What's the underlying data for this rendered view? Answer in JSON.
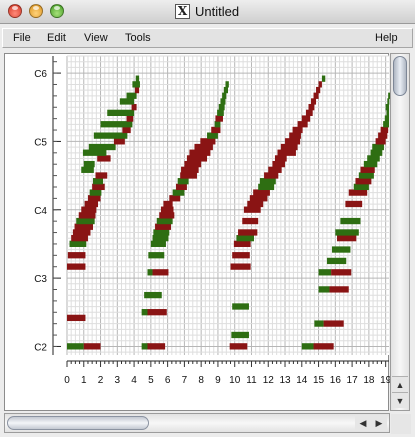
{
  "window": {
    "title": "Untitled",
    "app_icon": "X"
  },
  "menu": {
    "file": "File",
    "edit": "Edit",
    "view": "View",
    "tools": "Tools",
    "help": "Help"
  },
  "piano_roll": {
    "octave_labels": [
      "C6",
      "C5",
      "C4",
      "C3",
      "C2"
    ],
    "beat_labels": [
      "0",
      "1",
      "2",
      "3",
      "4",
      "5",
      "6",
      "7",
      "8",
      "9",
      "10",
      "11",
      "12",
      "13",
      "14",
      "15",
      "16",
      "17",
      "18",
      "19"
    ],
    "colors": {
      "green": "#2e6e12",
      "red": "#8a1414",
      "grid_minor": "#dedede",
      "grid_major": "#b6b6b6"
    },
    "beats_visible": [
      0,
      19.2
    ],
    "pitch_visible": [
      34.5,
      87
    ],
    "notes": [
      {
        "p": 36,
        "s": 0.0,
        "d": 1.0,
        "c": "green"
      },
      {
        "p": 36,
        "s": 1.0,
        "d": 1.0,
        "c": "red"
      },
      {
        "p": 41,
        "s": 0.0,
        "d": 1.1,
        "c": "red"
      },
      {
        "p": 50,
        "s": 0.0,
        "d": 1.1,
        "c": "red"
      },
      {
        "p": 52,
        "s": 0.05,
        "d": 1.05,
        "c": "red"
      },
      {
        "p": 54,
        "s": 0.15,
        "d": 1.0,
        "c": "green"
      },
      {
        "p": 55,
        "s": 0.25,
        "d": 1.0,
        "c": "red"
      },
      {
        "p": 56,
        "s": 0.35,
        "d": 1.05,
        "c": "red"
      },
      {
        "p": 57,
        "s": 0.45,
        "d": 1.1,
        "c": "red"
      },
      {
        "p": 58,
        "s": 0.55,
        "d": 1.1,
        "c": "green"
      },
      {
        "p": 59,
        "s": 0.7,
        "d": 1.0,
        "c": "red"
      },
      {
        "p": 60,
        "s": 0.85,
        "d": 0.9,
        "c": "red"
      },
      {
        "p": 61,
        "s": 1.05,
        "d": 0.8,
        "c": "red"
      },
      {
        "p": 62,
        "s": 1.25,
        "d": 0.75,
        "c": "red"
      },
      {
        "p": 63,
        "s": 1.35,
        "d": 0.7,
        "c": "green"
      },
      {
        "p": 64,
        "s": 1.5,
        "d": 0.75,
        "c": "red"
      },
      {
        "p": 65,
        "s": 1.55,
        "d": 0.6,
        "c": "green"
      },
      {
        "p": 66,
        "s": 1.7,
        "d": 0.7,
        "c": "red"
      },
      {
        "p": 67,
        "s": 0.85,
        "d": 0.75,
        "c": "green"
      },
      {
        "p": 68,
        "s": 1.0,
        "d": 0.65,
        "c": "green"
      },
      {
        "p": 69,
        "s": 1.8,
        "d": 0.8,
        "c": "red"
      },
      {
        "p": 70,
        "s": 0.95,
        "d": 1.4,
        "c": "green"
      },
      {
        "p": 71,
        "s": 1.3,
        "d": 1.6,
        "c": "green"
      },
      {
        "p": 72,
        "s": 2.8,
        "d": 0.65,
        "c": "red"
      },
      {
        "p": 73,
        "s": 1.6,
        "d": 2.0,
        "c": "green"
      },
      {
        "p": 74,
        "s": 3.3,
        "d": 0.5,
        "c": "red"
      },
      {
        "p": 75,
        "s": 2.0,
        "d": 1.9,
        "c": "green"
      },
      {
        "p": 76,
        "s": 3.55,
        "d": 0.4,
        "c": "red"
      },
      {
        "p": 77,
        "s": 2.4,
        "d": 1.6,
        "c": "green"
      },
      {
        "p": 78,
        "s": 3.85,
        "d": 0.3,
        "c": "red"
      },
      {
        "p": 79,
        "s": 3.15,
        "d": 0.85,
        "c": "green"
      },
      {
        "p": 80,
        "s": 3.55,
        "d": 0.6,
        "c": "green"
      },
      {
        "p": 81,
        "s": 4.05,
        "d": 0.25,
        "c": "red"
      },
      {
        "p": 82,
        "s": 3.9,
        "d": 0.45,
        "c": "green"
      },
      {
        "p": 83,
        "s": 4.1,
        "d": 0.2,
        "c": "green"
      },
      {
        "p": 36,
        "s": 4.45,
        "d": 0.4,
        "c": "green"
      },
      {
        "p": 36,
        "s": 4.8,
        "d": 1.05,
        "c": "red"
      },
      {
        "p": 42,
        "s": 4.45,
        "d": 0.4,
        "c": "green"
      },
      {
        "p": 42,
        "s": 4.8,
        "d": 1.15,
        "c": "red"
      },
      {
        "p": 45,
        "s": 4.6,
        "d": 1.05,
        "c": "green"
      },
      {
        "p": 49,
        "s": 4.8,
        "d": 0.3,
        "c": "green"
      },
      {
        "p": 49,
        "s": 5.1,
        "d": 0.95,
        "c": "red"
      },
      {
        "p": 52,
        "s": 4.85,
        "d": 0.95,
        "c": "green"
      },
      {
        "p": 54,
        "s": 5.0,
        "d": 0.9,
        "c": "green"
      },
      {
        "p": 55,
        "s": 5.1,
        "d": 0.95,
        "c": "green"
      },
      {
        "p": 56,
        "s": 5.15,
        "d": 0.95,
        "c": "green"
      },
      {
        "p": 57,
        "s": 5.25,
        "d": 0.95,
        "c": "red"
      },
      {
        "p": 58,
        "s": 5.35,
        "d": 0.95,
        "c": "green"
      },
      {
        "p": 59,
        "s": 5.5,
        "d": 0.9,
        "c": "red"
      },
      {
        "p": 60,
        "s": 5.6,
        "d": 0.75,
        "c": "red"
      },
      {
        "p": 61,
        "s": 5.75,
        "d": 0.55,
        "c": "red"
      },
      {
        "p": 62,
        "s": 6.1,
        "d": 0.65,
        "c": "red"
      },
      {
        "p": 63,
        "s": 6.3,
        "d": 0.7,
        "c": "green"
      },
      {
        "p": 64,
        "s": 6.5,
        "d": 0.65,
        "c": "red"
      },
      {
        "p": 65,
        "s": 6.6,
        "d": 0.65,
        "c": "green"
      },
      {
        "p": 66,
        "s": 6.75,
        "d": 1.0,
        "c": "red"
      },
      {
        "p": 67,
        "s": 6.8,
        "d": 1.05,
        "c": "red"
      },
      {
        "p": 68,
        "s": 7.0,
        "d": 1.0,
        "c": "red"
      },
      {
        "p": 69,
        "s": 7.15,
        "d": 1.2,
        "c": "red"
      },
      {
        "p": 70,
        "s": 7.3,
        "d": 1.25,
        "c": "red"
      },
      {
        "p": 71,
        "s": 7.6,
        "d": 1.1,
        "c": "red"
      },
      {
        "p": 72,
        "s": 7.95,
        "d": 0.9,
        "c": "red"
      },
      {
        "p": 73,
        "s": 8.35,
        "d": 0.65,
        "c": "green"
      },
      {
        "p": 74,
        "s": 8.6,
        "d": 0.55,
        "c": "red"
      },
      {
        "p": 75,
        "s": 8.8,
        "d": 0.35,
        "c": "green"
      },
      {
        "p": 76,
        "s": 8.85,
        "d": 0.45,
        "c": "red"
      },
      {
        "p": 77,
        "s": 8.95,
        "d": 0.4,
        "c": "green"
      },
      {
        "p": 78,
        "s": 9.05,
        "d": 0.35,
        "c": "green"
      },
      {
        "p": 79,
        "s": 9.15,
        "d": 0.3,
        "c": "green"
      },
      {
        "p": 80,
        "s": 9.25,
        "d": 0.25,
        "c": "green"
      },
      {
        "p": 81,
        "s": 9.35,
        "d": 0.25,
        "c": "green"
      },
      {
        "p": 82,
        "s": 9.45,
        "d": 0.2,
        "c": "green"
      },
      {
        "p": 36,
        "s": 9.7,
        "d": 1.05,
        "c": "red"
      },
      {
        "p": 38,
        "s": 9.8,
        "d": 1.05,
        "c": "green"
      },
      {
        "p": 43,
        "s": 9.85,
        "d": 1.0,
        "c": "green"
      },
      {
        "p": 50,
        "s": 9.75,
        "d": 1.2,
        "c": "red"
      },
      {
        "p": 52,
        "s": 9.85,
        "d": 1.05,
        "c": "red"
      },
      {
        "p": 54,
        "s": 9.95,
        "d": 1.0,
        "c": "red"
      },
      {
        "p": 55,
        "s": 10.1,
        "d": 1.05,
        "c": "green"
      },
      {
        "p": 56,
        "s": 10.2,
        "d": 1.15,
        "c": "red"
      },
      {
        "p": 58,
        "s": 10.45,
        "d": 0.95,
        "c": "red"
      },
      {
        "p": 60,
        "s": 10.55,
        "d": 1.0,
        "c": "red"
      },
      {
        "p": 61,
        "s": 10.75,
        "d": 0.95,
        "c": "red"
      },
      {
        "p": 62,
        "s": 10.9,
        "d": 1.05,
        "c": "red"
      },
      {
        "p": 63,
        "s": 11.1,
        "d": 1.0,
        "c": "red"
      },
      {
        "p": 64,
        "s": 11.4,
        "d": 0.95,
        "c": "green"
      },
      {
        "p": 65,
        "s": 11.5,
        "d": 0.95,
        "c": "green"
      },
      {
        "p": 66,
        "s": 11.75,
        "d": 0.85,
        "c": "red"
      },
      {
        "p": 67,
        "s": 12.0,
        "d": 0.8,
        "c": "red"
      },
      {
        "p": 68,
        "s": 12.25,
        "d": 0.75,
        "c": "red"
      },
      {
        "p": 69,
        "s": 12.4,
        "d": 0.7,
        "c": "red"
      },
      {
        "p": 70,
        "s": 12.55,
        "d": 1.1,
        "c": "red"
      },
      {
        "p": 71,
        "s": 12.75,
        "d": 1.0,
        "c": "red"
      },
      {
        "p": 72,
        "s": 13.0,
        "d": 0.9,
        "c": "red"
      },
      {
        "p": 73,
        "s": 13.25,
        "d": 0.7,
        "c": "red"
      },
      {
        "p": 74,
        "s": 13.45,
        "d": 0.6,
        "c": "red"
      },
      {
        "p": 75,
        "s": 13.75,
        "d": 0.6,
        "c": "red"
      },
      {
        "p": 76,
        "s": 14.0,
        "d": 0.5,
        "c": "red"
      },
      {
        "p": 77,
        "s": 14.25,
        "d": 0.4,
        "c": "red"
      },
      {
        "p": 78,
        "s": 14.4,
        "d": 0.35,
        "c": "red"
      },
      {
        "p": 79,
        "s": 14.55,
        "d": 0.3,
        "c": "red"
      },
      {
        "p": 80,
        "s": 14.7,
        "d": 0.3,
        "c": "red"
      },
      {
        "p": 81,
        "s": 14.85,
        "d": 0.25,
        "c": "red"
      },
      {
        "p": 82,
        "s": 15.0,
        "d": 0.2,
        "c": "red"
      },
      {
        "p": 83,
        "s": 15.2,
        "d": 0.2,
        "c": "green"
      },
      {
        "p": 36,
        "s": 14.0,
        "d": 0.7,
        "c": "green"
      },
      {
        "p": 36,
        "s": 14.7,
        "d": 1.2,
        "c": "red"
      },
      {
        "p": 40,
        "s": 14.75,
        "d": 0.55,
        "c": "green"
      },
      {
        "p": 40,
        "s": 15.3,
        "d": 1.2,
        "c": "red"
      },
      {
        "p": 46,
        "s": 15.0,
        "d": 0.65,
        "c": "green"
      },
      {
        "p": 46,
        "s": 15.65,
        "d": 1.15,
        "c": "red"
      },
      {
        "p": 49,
        "s": 15.0,
        "d": 0.75,
        "c": "green"
      },
      {
        "p": 49,
        "s": 15.75,
        "d": 1.2,
        "c": "red"
      },
      {
        "p": 51,
        "s": 15.5,
        "d": 1.15,
        "c": "green"
      },
      {
        "p": 53,
        "s": 15.8,
        "d": 1.1,
        "c": "green"
      },
      {
        "p": 55,
        "s": 16.1,
        "d": 1.15,
        "c": "red"
      },
      {
        "p": 56,
        "s": 16.0,
        "d": 1.4,
        "c": "green"
      },
      {
        "p": 58,
        "s": 16.3,
        "d": 1.2,
        "c": "green"
      },
      {
        "p": 61,
        "s": 16.6,
        "d": 1.0,
        "c": "red"
      },
      {
        "p": 63,
        "s": 16.8,
        "d": 1.1,
        "c": "red"
      },
      {
        "p": 64,
        "s": 17.1,
        "d": 0.9,
        "c": "green"
      },
      {
        "p": 65,
        "s": 17.2,
        "d": 0.95,
        "c": "red"
      },
      {
        "p": 66,
        "s": 17.4,
        "d": 0.9,
        "c": "green"
      },
      {
        "p": 67,
        "s": 17.5,
        "d": 0.85,
        "c": "red"
      },
      {
        "p": 68,
        "s": 17.7,
        "d": 0.8,
        "c": "green"
      },
      {
        "p": 69,
        "s": 17.9,
        "d": 0.75,
        "c": "green"
      },
      {
        "p": 70,
        "s": 18.1,
        "d": 0.7,
        "c": "green"
      },
      {
        "p": 71,
        "s": 18.2,
        "d": 0.7,
        "c": "green"
      },
      {
        "p": 72,
        "s": 18.4,
        "d": 0.6,
        "c": "red"
      },
      {
        "p": 73,
        "s": 18.55,
        "d": 0.55,
        "c": "red"
      },
      {
        "p": 74,
        "s": 18.7,
        "d": 0.45,
        "c": "red"
      },
      {
        "p": 75,
        "s": 18.85,
        "d": 0.35,
        "c": "green"
      },
      {
        "p": 76,
        "s": 18.95,
        "d": 0.3,
        "c": "green"
      },
      {
        "p": 77,
        "s": 19.05,
        "d": 0.2,
        "c": "green"
      },
      {
        "p": 78,
        "s": 19.0,
        "d": 0.25,
        "c": "green"
      },
      {
        "p": 79,
        "s": 19.1,
        "d": 0.2,
        "c": "green"
      },
      {
        "p": 80,
        "s": 19.15,
        "d": 0.2,
        "c": "green"
      }
    ]
  },
  "icons": {
    "close": "close-light-icon",
    "minimize": "minimize-light-icon",
    "zoom": "zoom-light-icon",
    "scroll_up": "arrow-up-icon",
    "scroll_down": "arrow-down-icon",
    "scroll_left": "arrow-left-icon",
    "scroll_right": "arrow-right-icon"
  }
}
